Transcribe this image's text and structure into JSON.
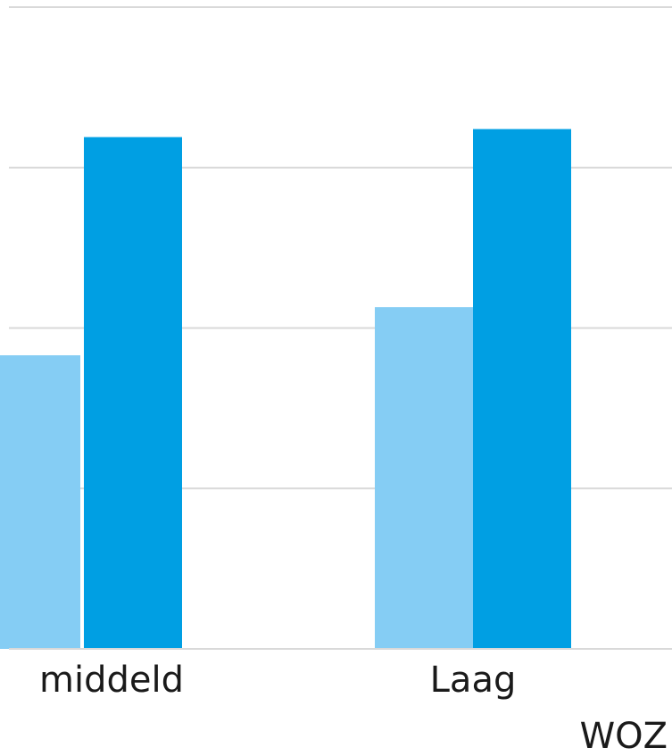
{
  "chart_data": {
    "type": "bar",
    "categories": [
      "middeld",
      "Laag"
    ],
    "series": [
      {
        "values": [
          18.3,
          21.3
        ],
        "color": "#85cdf4"
      },
      {
        "values": [
          31.9,
          32.4
        ],
        "color": "#009fe3"
      }
    ],
    "xlabel": "WOZ",
    "ylabel": "",
    "ylim": [
      0,
      40
    ],
    "grid": true,
    "gridlines": [
      10,
      20,
      30,
      40
    ],
    "grid_color": "#d9d9d9",
    "axis_color": "#d9d9d9"
  }
}
